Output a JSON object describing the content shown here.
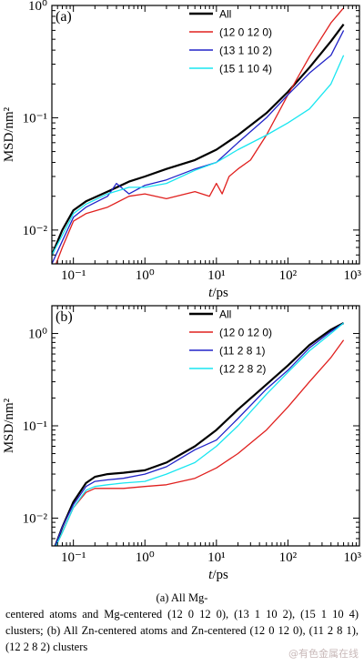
{
  "colors": {
    "All": "#000000",
    "red": "#e0201e",
    "blue": "#2224c8",
    "cyan": "#19e6f0"
  },
  "chart_data": [
    {
      "type": "line",
      "panel_label": "(a)",
      "x_scale": "log",
      "y_scale": "log",
      "xlim": [
        0.05,
        1000
      ],
      "ylim": [
        0.005,
        1
      ],
      "xlabel": "t/ps",
      "ylabel": "MSD/nm²",
      "x_ticks": [
        "10⁻¹",
        "10⁰",
        "10¹",
        "10²",
        "10³"
      ],
      "y_ticks": [
        "10⁻²",
        "10⁻¹",
        "10⁰"
      ],
      "legend_position": "top-right",
      "series": [
        {
          "name": "All",
          "color": "#000000",
          "x": [
            0.05,
            0.07,
            0.1,
            0.15,
            0.3,
            0.6,
            1,
            2,
            5,
            10,
            20,
            50,
            100,
            200,
            400,
            600
          ],
          "y": [
            0.006,
            0.01,
            0.015,
            0.018,
            0.022,
            0.027,
            0.03,
            0.035,
            0.042,
            0.052,
            0.07,
            0.11,
            0.17,
            0.28,
            0.48,
            0.68
          ]
        },
        {
          "name": "(12 0 12 0)",
          "color": "#e0201e",
          "x": [
            0.05,
            0.07,
            0.1,
            0.15,
            0.3,
            0.6,
            1,
            2,
            5,
            8,
            10,
            12,
            15,
            20,
            30,
            50,
            100,
            200,
            400,
            600
          ],
          "y": [
            0.004,
            0.007,
            0.012,
            0.014,
            0.016,
            0.02,
            0.021,
            0.019,
            0.022,
            0.02,
            0.026,
            0.021,
            0.03,
            0.035,
            0.042,
            0.07,
            0.16,
            0.35,
            0.7,
            0.95
          ]
        },
        {
          "name": "(13 1 10 2)",
          "color": "#2224c8",
          "x": [
            0.05,
            0.07,
            0.1,
            0.15,
            0.3,
            0.4,
            0.6,
            1,
            2,
            5,
            10,
            20,
            50,
            100,
            200,
            400,
            600
          ],
          "y": [
            0.005,
            0.008,
            0.013,
            0.016,
            0.02,
            0.026,
            0.021,
            0.025,
            0.028,
            0.035,
            0.04,
            0.06,
            0.1,
            0.16,
            0.25,
            0.36,
            0.6
          ]
        },
        {
          "name": "(15 1 10 4)",
          "color": "#19e6f0",
          "x": [
            0.05,
            0.07,
            0.1,
            0.15,
            0.3,
            0.6,
            1,
            2,
            5,
            10,
            20,
            50,
            100,
            200,
            400,
            600
          ],
          "y": [
            0.006,
            0.009,
            0.014,
            0.017,
            0.021,
            0.024,
            0.024,
            0.026,
            0.034,
            0.04,
            0.052,
            0.07,
            0.09,
            0.12,
            0.2,
            0.36
          ]
        }
      ]
    },
    {
      "type": "line",
      "panel_label": "(b)",
      "x_scale": "log",
      "y_scale": "log",
      "xlim": [
        0.05,
        1000
      ],
      "ylim": [
        0.005,
        2
      ],
      "xlabel": "t/ps",
      "ylabel": "MSD/nm²",
      "x_ticks": [
        "10⁻¹",
        "10⁰",
        "10¹",
        "10²",
        "10³"
      ],
      "y_ticks": [
        "10⁻²",
        "10⁻¹",
        "10⁰"
      ],
      "legend_position": "top-right",
      "series": [
        {
          "name": "All",
          "color": "#000000",
          "x": [
            0.05,
            0.07,
            0.1,
            0.15,
            0.2,
            0.3,
            0.5,
            1,
            2,
            5,
            10,
            20,
            50,
            100,
            200,
            400,
            600
          ],
          "y": [
            0.004,
            0.008,
            0.015,
            0.024,
            0.028,
            0.03,
            0.031,
            0.033,
            0.04,
            0.06,
            0.09,
            0.15,
            0.28,
            0.45,
            0.75,
            1.1,
            1.3
          ]
        },
        {
          "name": "(12 0 12 0)",
          "color": "#e0201e",
          "x": [
            0.05,
            0.07,
            0.1,
            0.15,
            0.2,
            0.3,
            0.5,
            1,
            2,
            5,
            10,
            20,
            50,
            100,
            200,
            400,
            600
          ],
          "y": [
            0.004,
            0.007,
            0.013,
            0.019,
            0.021,
            0.021,
            0.021,
            0.022,
            0.023,
            0.027,
            0.035,
            0.05,
            0.09,
            0.16,
            0.3,
            0.55,
            0.85
          ]
        },
        {
          "name": "(11 2 8 1)",
          "color": "#2224c8",
          "x": [
            0.05,
            0.07,
            0.1,
            0.15,
            0.2,
            0.3,
            0.5,
            1,
            2,
            5,
            10,
            20,
            50,
            100,
            200,
            400,
            600
          ],
          "y": [
            0.004,
            0.008,
            0.014,
            0.022,
            0.025,
            0.026,
            0.027,
            0.03,
            0.036,
            0.055,
            0.07,
            0.12,
            0.25,
            0.4,
            0.7,
            1.05,
            1.3
          ]
        },
        {
          "name": "(12 2 8 2)",
          "color": "#19e6f0",
          "x": [
            0.05,
            0.07,
            0.1,
            0.15,
            0.2,
            0.3,
            0.5,
            1,
            2,
            5,
            10,
            20,
            50,
            100,
            200,
            400,
            600
          ],
          "y": [
            0.004,
            0.007,
            0.013,
            0.02,
            0.022,
            0.023,
            0.024,
            0.025,
            0.03,
            0.04,
            0.06,
            0.1,
            0.22,
            0.38,
            0.65,
            1.0,
            1.3
          ]
        }
      ]
    }
  ],
  "caption": {
    "line1": "(a)  All  Mg-",
    "line2": "centered atoms and Mg-centered (12 0 12 0), (13 1 10 2), (15 1 10 4) clusters; (b) All Zn-centered atoms and Zn-centered (12 0 12 0), (11 2 8 1), (12 2 8 2) clusters"
  },
  "watermark": "@有色金属在线"
}
